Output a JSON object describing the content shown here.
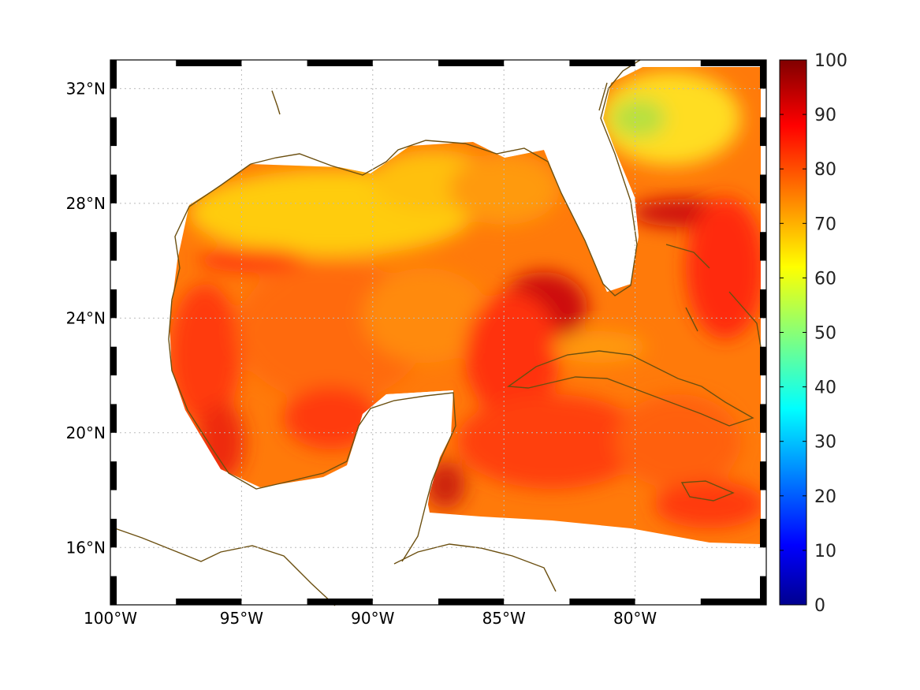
{
  "map": {
    "lon_range": [
      -100,
      -75
    ],
    "lat_range": [
      14,
      33
    ],
    "lat_ticks": [
      {
        "value": 32,
        "label": "32°N"
      },
      {
        "value": 28,
        "label": "28°N"
      },
      {
        "value": 24,
        "label": "24°N"
      },
      {
        "value": 20,
        "label": "20°N"
      },
      {
        "value": 16,
        "label": "16°N"
      }
    ],
    "lon_ticks": [
      {
        "value": -100,
        "label": "100°W"
      },
      {
        "value": -95,
        "label": "95°W"
      },
      {
        "value": -90,
        "label": "90°W"
      },
      {
        "value": -85,
        "label": "85°W"
      },
      {
        "value": -80,
        "label": "80°W"
      }
    ],
    "grid": "dotted",
    "coastline_color": "#6b4f10",
    "land_color": "#ffffff"
  },
  "colorbar": {
    "colormap": "jet",
    "min": 0,
    "max": 100,
    "ticks": [
      {
        "value": 100,
        "label": "100"
      },
      {
        "value": 90,
        "label": "90"
      },
      {
        "value": 80,
        "label": "80"
      },
      {
        "value": 70,
        "label": "70"
      },
      {
        "value": 60,
        "label": "60"
      },
      {
        "value": 50,
        "label": "50"
      },
      {
        "value": 40,
        "label": "40"
      },
      {
        "value": 30,
        "label": "30"
      },
      {
        "value": 20,
        "label": "20"
      },
      {
        "value": 10,
        "label": "10"
      },
      {
        "value": 0,
        "label": "0"
      }
    ],
    "gradient_stops": [
      "#00008f",
      "#0000ff",
      "#00ffff",
      "#ffff00",
      "#ff0000",
      "#800000"
    ]
  }
}
